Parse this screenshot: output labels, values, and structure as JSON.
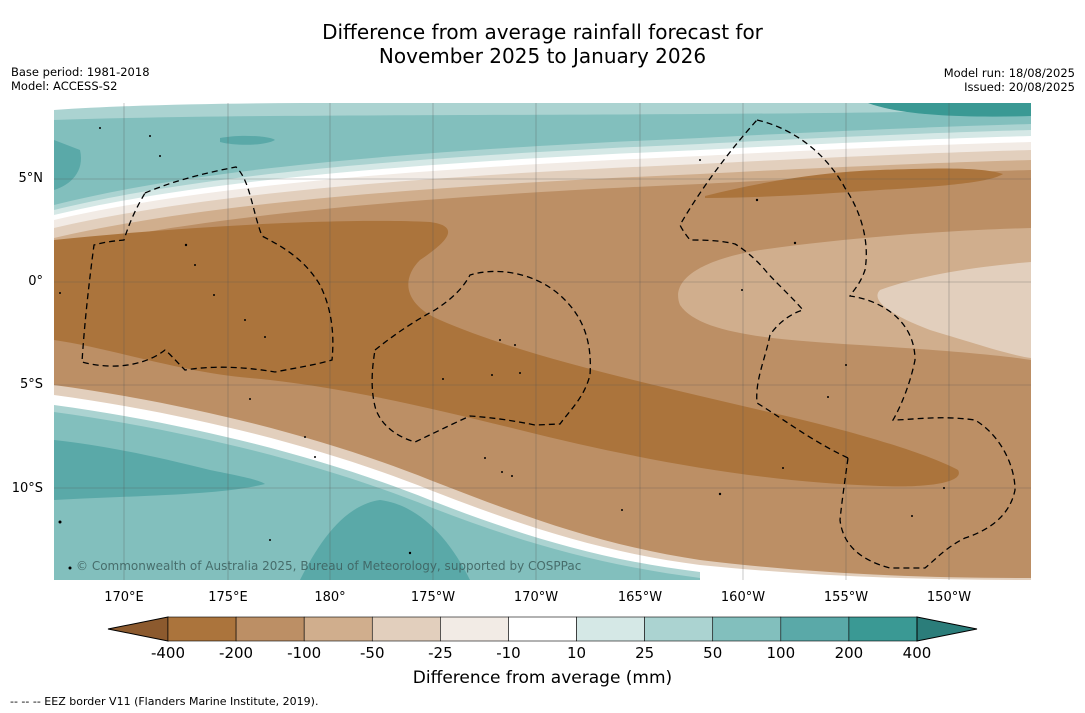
{
  "title_line1": "Difference from average rainfall forecast for",
  "title_line2": "November 2025 to January 2026",
  "meta_left": {
    "base_period": "Base period: 1981-2018",
    "model": "Model: ACCESS-S2"
  },
  "meta_right": {
    "model_run": "Model run: 18/08/2025",
    "issued": "Issued: 20/08/2025"
  },
  "copyright": "© Commonwealth of Australia 2025, Bureau of Meteorology, supported by COSPPac",
  "lat_labels": [
    "5°N",
    "0°",
    "5°S",
    "10°S"
  ],
  "lon_labels": [
    "170°E",
    "175°E",
    "180°",
    "175°W",
    "170°W",
    "165°W",
    "160°W",
    "155°W",
    "150°W"
  ],
  "colorbar": {
    "label": "Difference from average (mm)",
    "ticks": [
      "-400",
      "-200",
      "-100",
      "-50",
      "-25",
      "-10",
      "10",
      "25",
      "50",
      "100",
      "200",
      "400"
    ],
    "colors": [
      "#8c5a2e",
      "#ab743c",
      "#bc8f65",
      "#d0ae8d",
      "#e2cfbd",
      "#f2ebe5",
      "#ffffff",
      "#d5e8e6",
      "#abd3d1",
      "#82bfbd",
      "#5aa9a8",
      "#3a9994",
      "#2b7d7a"
    ]
  },
  "legend_note": "--  --  -- EEZ border V11 (Flanders Marine Institute, 2019)."
}
